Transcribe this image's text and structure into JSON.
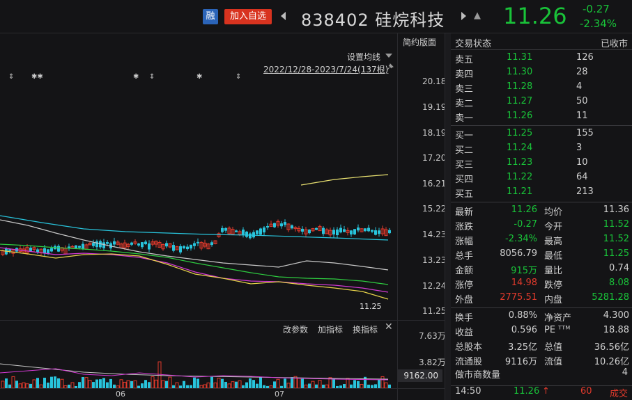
{
  "header": {
    "rong_badge": "融",
    "add_favorite": "加入自选",
    "stock_code_name": "838402 硅烷科技",
    "price": "11.26",
    "change": "-0.27",
    "change_pct": "-2.34%"
  },
  "chart": {
    "simple_layout": "简约版面",
    "ma_settings": "设置均线",
    "date_range": "2022/12/28-2023/7/24(137根)",
    "last_price_label": "11.25",
    "y_labels": [
      "20.18",
      "19.19",
      "18.19",
      "17.20",
      "16.21",
      "15.22",
      "14.23",
      "13.23",
      "12.24",
      "11.25"
    ],
    "vol_y_labels": [
      "7.63万",
      "3.82万"
    ],
    "vol_value": "9162.00",
    "tools": {
      "change_params": "改参数",
      "add_indicator": "加指标",
      "swap_indicator": "换指标"
    },
    "x_labels": [
      "06",
      "07"
    ]
  },
  "quote": {
    "status_label": "交易状态",
    "status_value": "已收市",
    "asks": [
      {
        "label": "卖五",
        "price": "11.31",
        "vol": "126"
      },
      {
        "label": "卖四",
        "price": "11.30",
        "vol": "28"
      },
      {
        "label": "卖三",
        "price": "11.28",
        "vol": "4"
      },
      {
        "label": "卖二",
        "price": "11.27",
        "vol": "50"
      },
      {
        "label": "卖一",
        "price": "11.26",
        "vol": "11"
      }
    ],
    "bids": [
      {
        "label": "买一",
        "price": "11.25",
        "vol": "155"
      },
      {
        "label": "买二",
        "price": "11.24",
        "vol": "3"
      },
      {
        "label": "买三",
        "price": "11.23",
        "vol": "10"
      },
      {
        "label": "买四",
        "price": "11.22",
        "vol": "64"
      },
      {
        "label": "买五",
        "price": "11.21",
        "vol": "213"
      }
    ],
    "stats": [
      {
        "l1": "最新",
        "v1": "11.26",
        "l2": "均价",
        "v2": "11.36"
      },
      {
        "l1": "涨跌",
        "v1": "-0.27",
        "l2": "今开",
        "v2": "11.52"
      },
      {
        "l1": "涨幅",
        "v1": "-2.34%",
        "l2": "最高",
        "v2": "11.52"
      },
      {
        "l1": "总手",
        "v1": "8056.79",
        "l2": "最低",
        "v2": "11.25"
      },
      {
        "l1": "金额",
        "v1": "915万",
        "l2": "量比",
        "v2": "0.74"
      },
      {
        "l1": "涨停",
        "v1": "14.98",
        "l2": "跌停",
        "v2": "8.08"
      },
      {
        "l1": "外盘",
        "v1": "2775.51",
        "l2": "内盘",
        "v2": "5281.28"
      }
    ],
    "fundamentals": [
      {
        "l1": "换手",
        "v1": "0.88%",
        "l2": "净资产",
        "v2": "4.300"
      },
      {
        "l1": "收益",
        "v1": "0.596",
        "l2": "PE ᵀᵀᴹ",
        "v2": "18.88"
      },
      {
        "l1": "总股本",
        "v1": "3.25亿",
        "l2": "总值",
        "v2": "36.56亿"
      },
      {
        "l1": "流通股",
        "v1": "9116万",
        "l2": "流值",
        "v2": "10.26亿"
      }
    ],
    "market_makers_label": "做市商数量",
    "market_makers_value": "4",
    "last_trade": {
      "time": "14:50",
      "price": "11.26",
      "arrow": "↑",
      "vol": "60",
      "type": "成交"
    }
  },
  "colors": {
    "up": "#e23a2c",
    "down": "#19c339",
    "bg": "#141416"
  }
}
